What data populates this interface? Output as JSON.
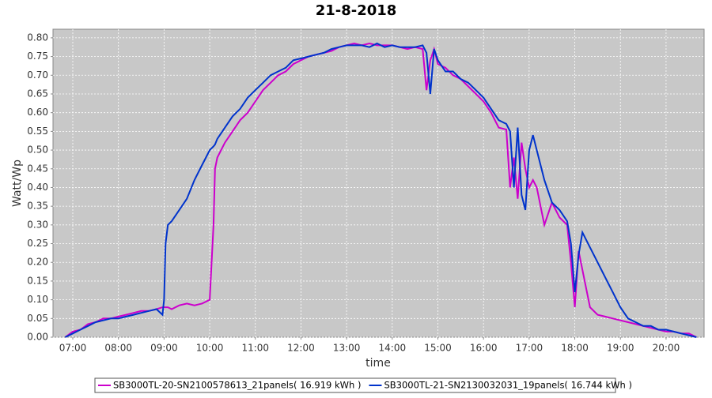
{
  "chart_data": {
    "type": "line",
    "title": "21-8-2018",
    "x_label": "time",
    "y_label": "Watt/Wp",
    "xlim": [
      394,
      1250
    ],
    "ylim": [
      0,
      0.823
    ],
    "grid": true,
    "legend": "bottom",
    "xticks": [
      {
        "value": 420,
        "label": "07:00"
      },
      {
        "value": 480,
        "label": "08:00"
      },
      {
        "value": 540,
        "label": "09:00"
      },
      {
        "value": 600,
        "label": "10:00"
      },
      {
        "value": 660,
        "label": "11:00"
      },
      {
        "value": 720,
        "label": "12:00"
      },
      {
        "value": 780,
        "label": "13:00"
      },
      {
        "value": 840,
        "label": "14:00"
      },
      {
        "value": 900,
        "label": "15:00"
      },
      {
        "value": 960,
        "label": "16:00"
      },
      {
        "value": 1020,
        "label": "17:00"
      },
      {
        "value": 1080,
        "label": "18:00"
      },
      {
        "value": 1140,
        "label": "19:00"
      },
      {
        "value": 1200,
        "label": "20:00"
      }
    ],
    "yticks": [
      {
        "value": 0,
        "label": "0.00"
      },
      {
        "value": 0.05,
        "label": "0.05"
      },
      {
        "value": 0.1,
        "label": "0.10"
      },
      {
        "value": 0.15,
        "label": "0.15"
      },
      {
        "value": 0.2,
        "label": "0.20"
      },
      {
        "value": 0.25,
        "label": "0.25"
      },
      {
        "value": 0.3,
        "label": "0.30"
      },
      {
        "value": 0.35,
        "label": "0.35"
      },
      {
        "value": 0.4,
        "label": "0.40"
      },
      {
        "value": 0.45,
        "label": "0.45"
      },
      {
        "value": 0.5,
        "label": "0.50"
      },
      {
        "value": 0.55,
        "label": "0.55"
      },
      {
        "value": 0.6,
        "label": "0.60"
      },
      {
        "value": 0.65,
        "label": "0.65"
      },
      {
        "value": 0.7,
        "label": "0.70"
      },
      {
        "value": 0.75,
        "label": "0.75"
      },
      {
        "value": 0.8,
        "label": "0.80"
      }
    ],
    "x": [
      410,
      420,
      430,
      440,
      450,
      460,
      470,
      480,
      490,
      500,
      510,
      520,
      530,
      538,
      540,
      542,
      545,
      550,
      560,
      570,
      580,
      590,
      595,
      600,
      605,
      607,
      610,
      620,
      630,
      640,
      650,
      660,
      670,
      680,
      690,
      700,
      710,
      720,
      730,
      740,
      750,
      760,
      770,
      780,
      790,
      800,
      810,
      820,
      830,
      840,
      850,
      860,
      870,
      880,
      885,
      890,
      895,
      900,
      910,
      920,
      930,
      940,
      950,
      960,
      970,
      980,
      990,
      995,
      1000,
      1005,
      1010,
      1015,
      1020,
      1025,
      1030,
      1040,
      1050,
      1060,
      1070,
      1075,
      1080,
      1085,
      1090,
      1100,
      1110,
      1120,
      1130,
      1140,
      1150,
      1160,
      1170,
      1180,
      1190,
      1200,
      1210,
      1220,
      1230,
      1240
    ],
    "series": [
      {
        "name": "SB3000TL-20-SN2100578613_21panels( 16.919 kWh )",
        "color": "#cc00cc",
        "values": [
          0,
          0.015,
          0.02,
          0.035,
          0.04,
          0.05,
          0.05,
          0.055,
          0.06,
          0.065,
          0.07,
          0.07,
          0.075,
          0.08,
          0.08,
          0.08,
          0.08,
          0.075,
          0.085,
          0.09,
          0.085,
          0.09,
          0.095,
          0.1,
          0.3,
          0.45,
          0.48,
          0.52,
          0.55,
          0.58,
          0.6,
          0.63,
          0.66,
          0.68,
          0.7,
          0.71,
          0.73,
          0.74,
          0.75,
          0.755,
          0.76,
          0.765,
          0.775,
          0.78,
          0.785,
          0.78,
          0.785,
          0.78,
          0.78,
          0.78,
          0.775,
          0.77,
          0.775,
          0.77,
          0.66,
          0.74,
          0.77,
          0.73,
          0.72,
          0.7,
          0.69,
          0.67,
          0.65,
          0.63,
          0.6,
          0.56,
          0.555,
          0.4,
          0.48,
          0.37,
          0.52,
          0.45,
          0.4,
          0.42,
          0.4,
          0.3,
          0.36,
          0.32,
          0.3,
          0.2,
          0.08,
          0.23,
          0.18,
          0.08,
          0.06,
          0.055,
          0.05,
          0.045,
          0.04,
          0.035,
          0.03,
          0.025,
          0.02,
          0.015,
          0.015,
          0.01,
          0.01,
          0
        ]
      },
      {
        "name": "SB3000TL-21-SN2130032031_19panels( 16.744 kWh )",
        "color": "#0033cc",
        "values": [
          0,
          0.01,
          0.02,
          0.03,
          0.04,
          0.045,
          0.05,
          0.05,
          0.055,
          0.06,
          0.065,
          0.07,
          0.075,
          0.06,
          0.1,
          0.25,
          0.3,
          0.31,
          0.34,
          0.37,
          0.42,
          0.46,
          0.48,
          0.5,
          0.51,
          0.515,
          0.53,
          0.56,
          0.59,
          0.61,
          0.64,
          0.66,
          0.68,
          0.7,
          0.71,
          0.72,
          0.74,
          0.745,
          0.75,
          0.755,
          0.76,
          0.77,
          0.775,
          0.78,
          0.78,
          0.78,
          0.775,
          0.785,
          0.775,
          0.78,
          0.775,
          0.775,
          0.775,
          0.78,
          0.76,
          0.65,
          0.77,
          0.74,
          0.71,
          0.71,
          0.69,
          0.68,
          0.66,
          0.64,
          0.61,
          0.58,
          0.57,
          0.55,
          0.4,
          0.56,
          0.38,
          0.34,
          0.5,
          0.54,
          0.5,
          0.42,
          0.36,
          0.34,
          0.31,
          0.25,
          0.12,
          0.22,
          0.28,
          0.24,
          0.2,
          0.16,
          0.12,
          0.08,
          0.05,
          0.04,
          0.03,
          0.03,
          0.02,
          0.02,
          0.015,
          0.01,
          0.005,
          0
        ]
      }
    ]
  }
}
